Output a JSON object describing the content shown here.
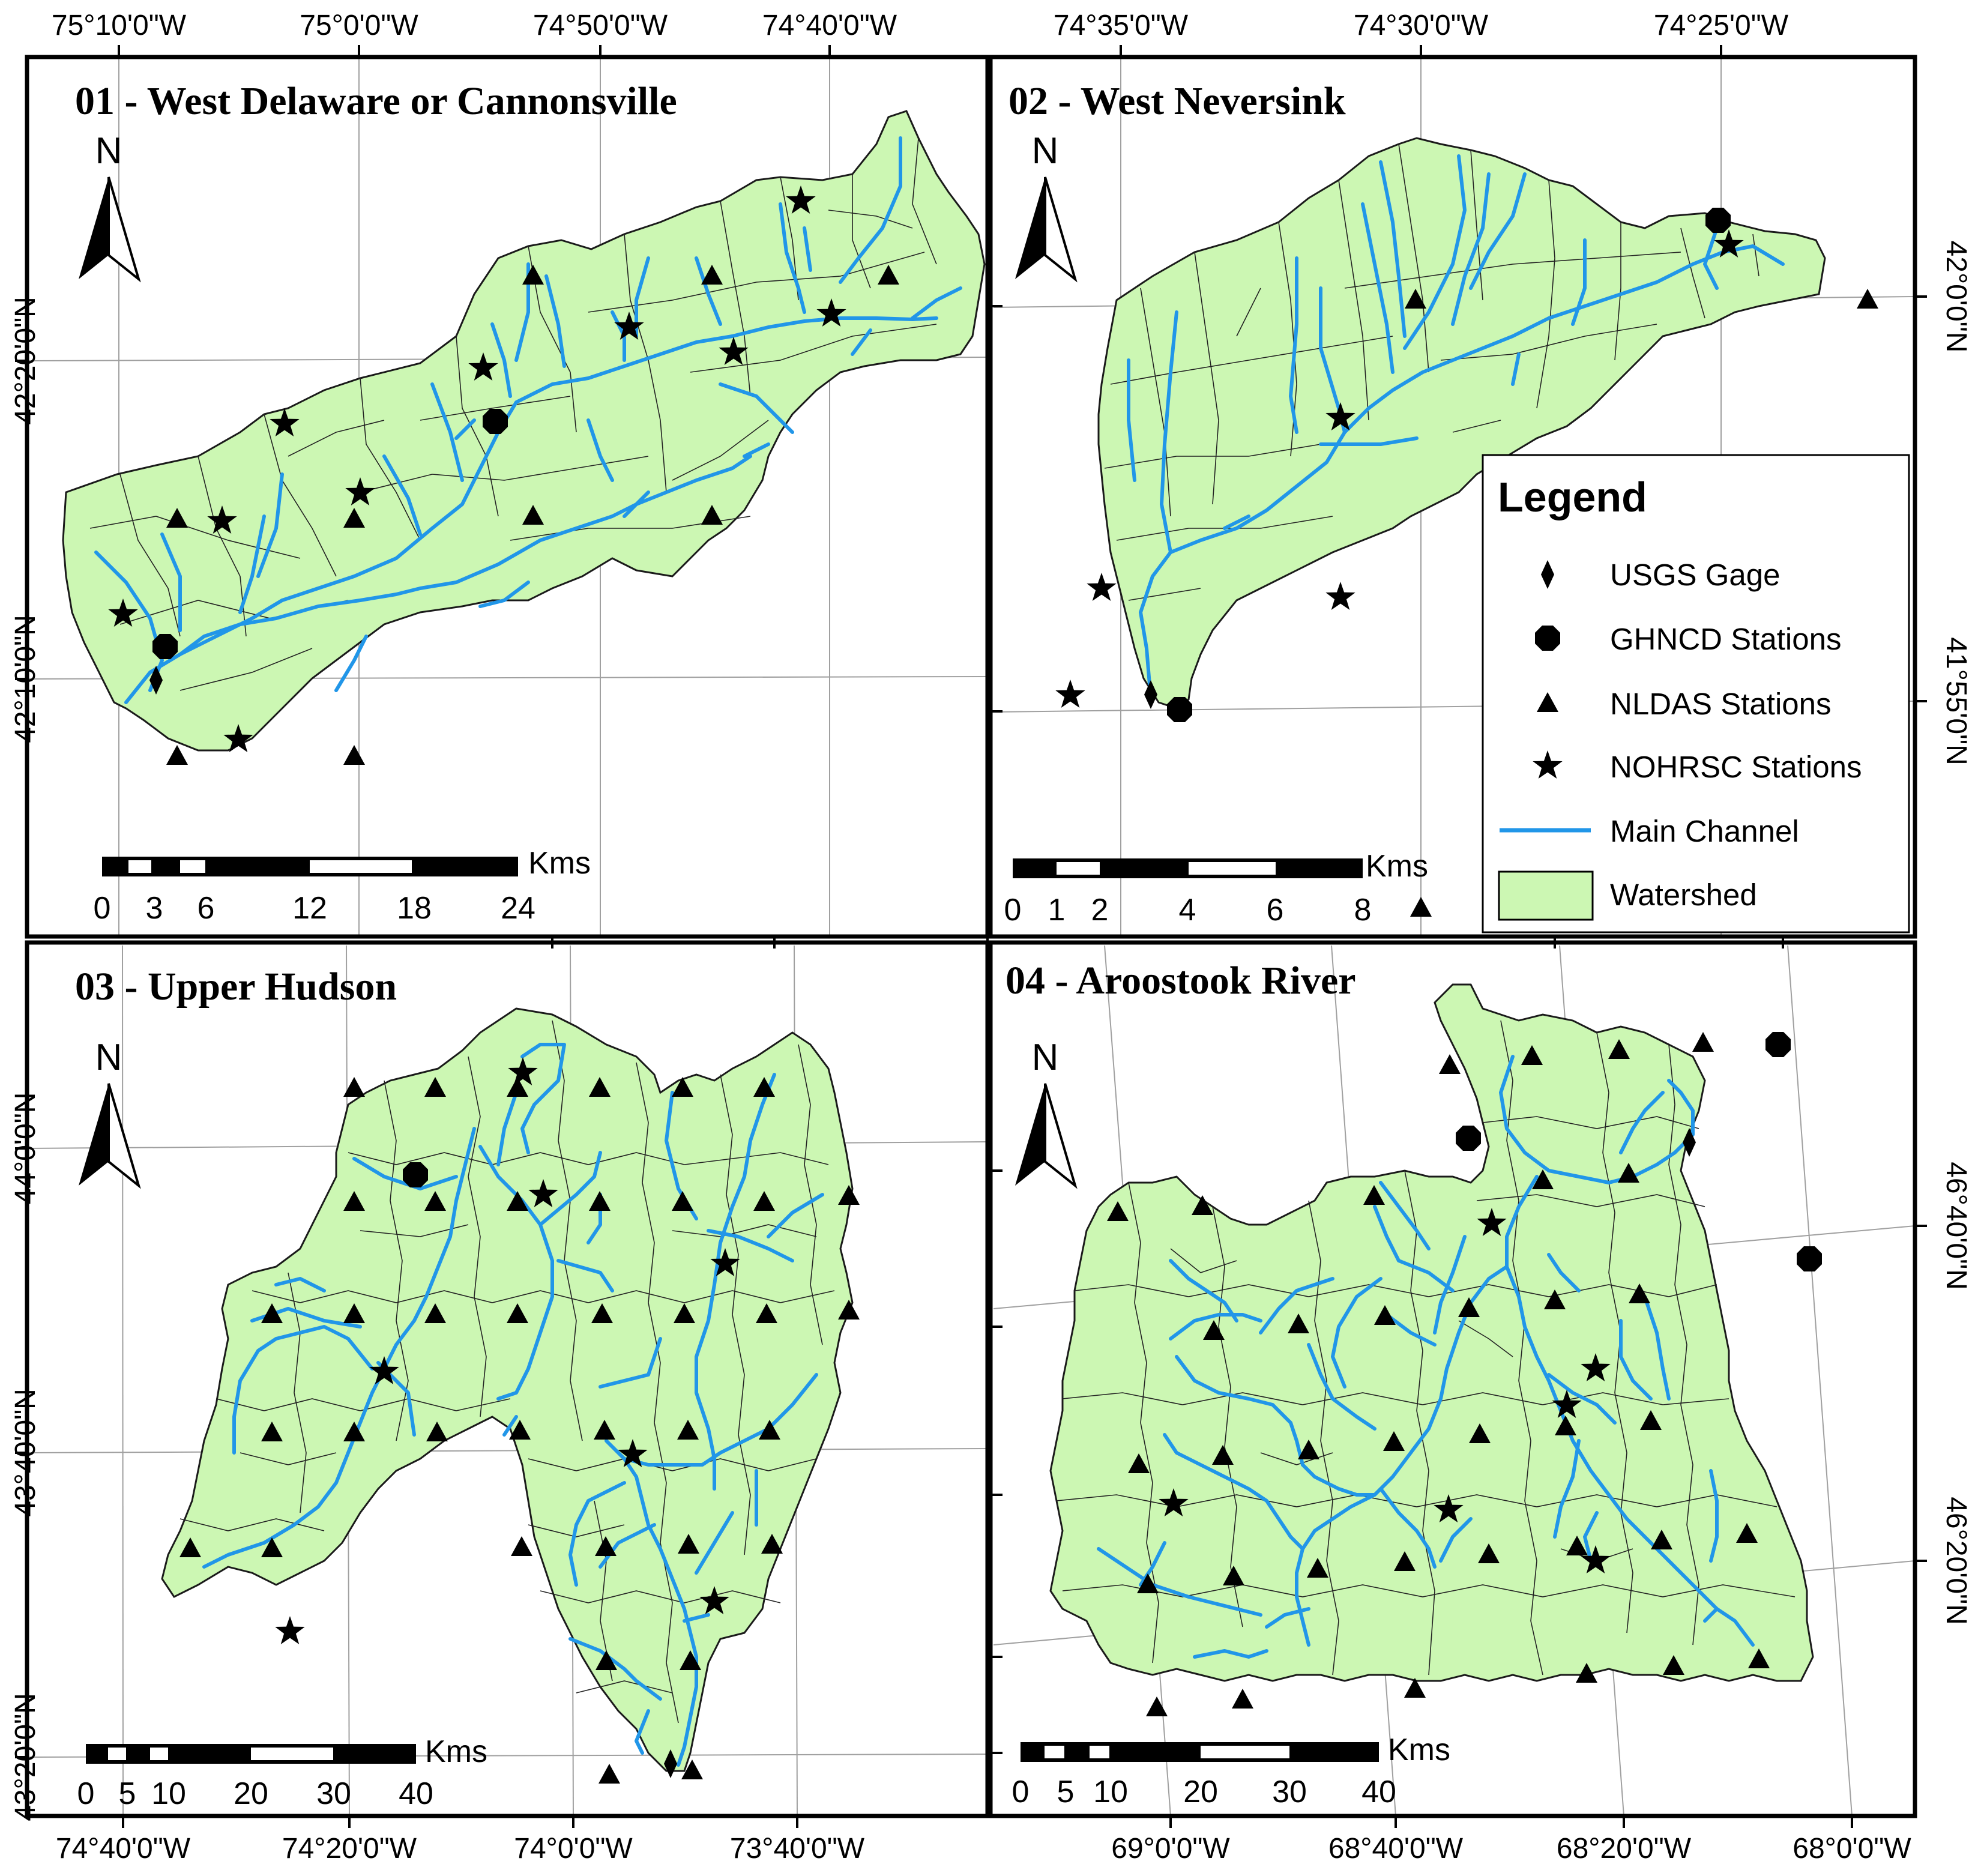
{
  "figure": {
    "top_longitudes_left": [
      "75°10'0\"W",
      "75°0'0\"W",
      "74°50'0\"W",
      "74°40'0\"W"
    ],
    "top_longitudes_right": [
      "74°35'0\"W",
      "74°30'0\"W",
      "74°25'0\"W"
    ],
    "bottom_longitudes_left": [
      "74°40'0\"W",
      "74°20'0\"W",
      "74°0'0\"W",
      "73°40'0\"W"
    ],
    "bottom_longitudes_right": [
      "69°0'0\"W",
      "68°40'0\"W",
      "68°20'0\"W",
      "68°0'0\"W"
    ],
    "left_latitudes_top": [
      "42°20'0\"N",
      "42°10'0\"N"
    ],
    "left_latitudes_bottom": [
      "44°0'0\"N",
      "43°40'0\"N",
      "43°20'0\"N"
    ],
    "right_latitudes_top": [
      "42°0'0\"N",
      "41°55'0\"N"
    ],
    "right_latitudes_bottom": [
      "46°40'0\"N",
      "46°20'0\"N"
    ]
  },
  "panels": [
    {
      "title": "01 - West Delaware or Cannonsville",
      "north": "N",
      "scale_unit": "Kms",
      "scale_ticks": [
        "0",
        "3",
        "6",
        "12",
        "18",
        "24"
      ]
    },
    {
      "title": "02 - West Neversink",
      "north": "N",
      "scale_unit": "Kms",
      "scale_ticks": [
        "0",
        "1",
        "2",
        "4",
        "6",
        "8"
      ]
    },
    {
      "title": "03 - Upper Hudson",
      "north": "N",
      "scale_unit": "Kms",
      "scale_ticks": [
        "0",
        "5",
        "10",
        "20",
        "30",
        "40"
      ]
    },
    {
      "title": "04 - Aroostook River",
      "north": "N",
      "scale_unit": "Kms",
      "scale_ticks": [
        "0",
        "5",
        "10",
        "20",
        "30",
        "40"
      ]
    }
  ],
  "legend": {
    "title": "Legend",
    "items": [
      {
        "label": "USGS Gage",
        "symbol": "diamond-icon"
      },
      {
        "label": "GHNCD Stations",
        "symbol": "octagon-icon"
      },
      {
        "label": "NLDAS Stations",
        "symbol": "triangle-icon"
      },
      {
        "label": "NOHRSC Stations",
        "symbol": "star-icon"
      },
      {
        "label": "Main Channel",
        "symbol": "blue-line-icon"
      },
      {
        "label": "Watershed",
        "symbol": "green-box-icon"
      }
    ]
  },
  "colors": {
    "watershed_fill": "#ccf7b3",
    "main_channel": "#2196e8",
    "station_symbols": "#000000",
    "grid": "#a0a0a0"
  }
}
